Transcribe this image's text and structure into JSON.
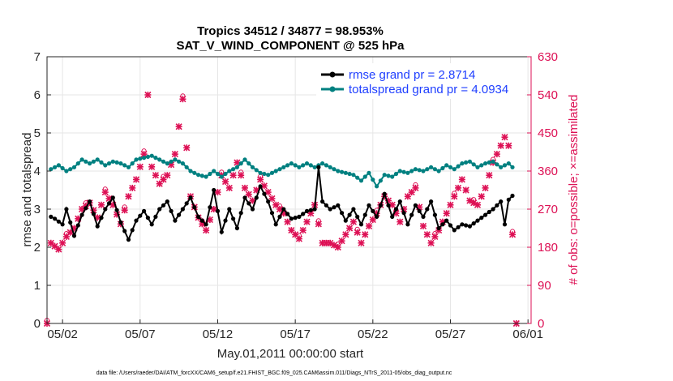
{
  "chart_data": {
    "type": "line",
    "title": "Tropics 34512 / 34877 = 98.953%",
    "subtitle": "SAT_V_WIND_COMPONENT @ 525 hPa",
    "xlabel": "May.01,2011 00:00:00 start",
    "ylabel_left": "rmse and totalspread",
    "ylabel_right": "# of obs: o=possible; ×=assimilated",
    "footer": "data file: /Users/raeder/DAI/ATM_forcXX/CAM6_setup/f.e21.FHIST_BGC.f09_025.CAM6assim.011/Diags_NTrS_2011-05/obs_diag_output.nc",
    "xlim": [
      0.0,
      31.2
    ],
    "ylim_left": [
      0,
      7
    ],
    "ylim_right": [
      0,
      630
    ],
    "x_ticks": [
      1,
      6,
      11,
      16,
      21,
      26,
      31
    ],
    "x_tick_labels": [
      "05/02",
      "05/07",
      "05/12",
      "05/17",
      "05/22",
      "05/27",
      "06/01"
    ],
    "y_ticks_left": [
      0,
      1,
      2,
      3,
      4,
      5,
      6,
      7
    ],
    "y_ticks_right": [
      0,
      90,
      180,
      270,
      360,
      450,
      540,
      630
    ],
    "colors": {
      "rmse": "#000000",
      "totalspread": "#008080",
      "obs": "#dd1155",
      "legend_text": "#1f3fff",
      "right_axis": "#dd1155"
    },
    "legend": [
      {
        "name": "rmse grand pr = 2.8714",
        "color": "#000000"
      },
      {
        "name": "totalspread grand pr = 4.0934",
        "color": "#008080"
      }
    ],
    "series": [
      {
        "name": "rmse",
        "color": "#000000",
        "axis": "left",
        "key_points": [
          [
            0.25,
            2.8
          ],
          [
            0.5,
            2.75
          ],
          [
            1.0,
            2.6
          ],
          [
            1.25,
            3.0
          ],
          [
            1.75,
            2.3
          ],
          [
            2.25,
            2.85
          ],
          [
            2.75,
            3.2
          ],
          [
            3.25,
            2.55
          ],
          [
            3.75,
            3.0
          ],
          [
            4.25,
            3.3
          ],
          [
            4.75,
            2.65
          ],
          [
            5.25,
            2.2
          ],
          [
            5.75,
            2.7
          ],
          [
            6.25,
            2.95
          ],
          [
            6.75,
            2.6
          ],
          [
            7.25,
            3.0
          ],
          [
            7.75,
            3.2
          ],
          [
            8.25,
            2.7
          ],
          [
            8.75,
            3.0
          ],
          [
            9.25,
            3.3
          ],
          [
            9.75,
            2.8
          ],
          [
            10.25,
            2.6
          ],
          [
            10.75,
            3.5
          ],
          [
            11.25,
            2.4
          ],
          [
            11.75,
            3.0
          ],
          [
            12.25,
            2.5
          ],
          [
            12.75,
            3.3
          ],
          [
            13.25,
            3.0
          ],
          [
            13.75,
            3.6
          ],
          [
            14.25,
            3.2
          ],
          [
            14.75,
            2.6
          ],
          [
            15.25,
            3.0
          ],
          [
            15.75,
            2.75
          ],
          [
            16.25,
            2.8
          ],
          [
            16.75,
            2.95
          ],
          [
            17.25,
            3.0
          ],
          [
            17.5,
            4.1
          ],
          [
            17.75,
            3.2
          ],
          [
            18.25,
            3.0
          ],
          [
            18.75,
            3.1
          ],
          [
            19.25,
            2.7
          ],
          [
            19.75,
            3.0
          ],
          [
            20.25,
            2.6
          ],
          [
            20.75,
            3.1
          ],
          [
            21.25,
            2.8
          ],
          [
            21.75,
            3.4
          ],
          [
            22.25,
            2.8
          ],
          [
            22.75,
            3.2
          ],
          [
            23.25,
            2.6
          ],
          [
            23.75,
            3.1
          ],
          [
            24.25,
            2.8
          ],
          [
            24.75,
            3.2
          ],
          [
            25.25,
            2.5
          ],
          [
            25.75,
            2.7
          ],
          [
            26.25,
            2.45
          ],
          [
            26.75,
            2.6
          ],
          [
            27.25,
            2.55
          ],
          [
            27.75,
            2.7
          ],
          [
            28.25,
            2.85
          ],
          [
            28.75,
            3.0
          ],
          [
            29.25,
            3.2
          ],
          [
            29.5,
            2.6
          ],
          [
            29.75,
            3.25
          ],
          [
            30.0,
            3.35
          ]
        ]
      },
      {
        "name": "totalspread",
        "color": "#008080",
        "axis": "left",
        "key_points": [
          [
            0.25,
            4.05
          ],
          [
            0.75,
            4.15
          ],
          [
            1.25,
            4.0
          ],
          [
            1.75,
            4.1
          ],
          [
            2.25,
            4.3
          ],
          [
            2.75,
            4.2
          ],
          [
            3.25,
            4.3
          ],
          [
            3.75,
            4.15
          ],
          [
            4.25,
            4.25
          ],
          [
            4.75,
            4.2
          ],
          [
            5.25,
            4.1
          ],
          [
            5.75,
            4.3
          ],
          [
            6.25,
            4.35
          ],
          [
            6.75,
            4.4
          ],
          [
            7.25,
            4.3
          ],
          [
            7.75,
            4.2
          ],
          [
            8.25,
            4.3
          ],
          [
            8.75,
            4.2
          ],
          [
            9.25,
            4.0
          ],
          [
            9.75,
            3.9
          ],
          [
            10.25,
            3.85
          ],
          [
            10.75,
            4.0
          ],
          [
            11.25,
            3.85
          ],
          [
            11.75,
            4.0
          ],
          [
            12.25,
            4.1
          ],
          [
            12.75,
            4.3
          ],
          [
            13.25,
            4.1
          ],
          [
            13.75,
            3.95
          ],
          [
            14.25,
            3.9
          ],
          [
            14.75,
            4.0
          ],
          [
            15.25,
            4.1
          ],
          [
            15.75,
            4.2
          ],
          [
            16.25,
            4.1
          ],
          [
            16.75,
            4.2
          ],
          [
            17.25,
            4.1
          ],
          [
            17.75,
            4.2
          ],
          [
            18.25,
            4.1
          ],
          [
            18.75,
            4.0
          ],
          [
            19.25,
            3.95
          ],
          [
            19.75,
            3.9
          ],
          [
            20.25,
            3.75
          ],
          [
            20.75,
            3.95
          ],
          [
            21.25,
            3.6
          ],
          [
            21.75,
            3.9
          ],
          [
            22.25,
            3.85
          ],
          [
            22.75,
            4.0
          ],
          [
            23.25,
            3.95
          ],
          [
            23.75,
            4.05
          ],
          [
            24.25,
            4.0
          ],
          [
            24.75,
            4.1
          ],
          [
            25.25,
            4.0
          ],
          [
            25.75,
            4.15
          ],
          [
            26.25,
            4.05
          ],
          [
            26.75,
            4.2
          ],
          [
            27.25,
            4.25
          ],
          [
            27.75,
            4.1
          ],
          [
            28.25,
            4.2
          ],
          [
            28.75,
            4.25
          ],
          [
            29.25,
            4.1
          ],
          [
            29.75,
            4.2
          ],
          [
            30.0,
            4.1
          ]
        ]
      },
      {
        "name": "obs possible/assimilated",
        "color": "#dd1155",
        "axis": "right",
        "key_points": [
          [
            0.0,
            0
          ],
          [
            0.25,
            190
          ],
          [
            0.75,
            175
          ],
          [
            1.25,
            205
          ],
          [
            1.75,
            225
          ],
          [
            2.25,
            270
          ],
          [
            2.75,
            285
          ],
          [
            3.25,
            250
          ],
          [
            3.75,
            310
          ],
          [
            4.25,
            280
          ],
          [
            4.75,
            235
          ],
          [
            5.25,
            300
          ],
          [
            5.75,
            340
          ],
          [
            6.25,
            400
          ],
          [
            6.5,
            540
          ],
          [
            6.75,
            370
          ],
          [
            7.25,
            330
          ],
          [
            7.75,
            350
          ],
          [
            8.25,
            400
          ],
          [
            8.75,
            530
          ],
          [
            9.25,
            300
          ],
          [
            9.75,
            250
          ],
          [
            10.25,
            220
          ],
          [
            10.75,
            270
          ],
          [
            11.25,
            350
          ],
          [
            11.75,
            320
          ],
          [
            12.25,
            380
          ],
          [
            12.75,
            320
          ],
          [
            13.25,
            290
          ],
          [
            13.75,
            340
          ],
          [
            14.25,
            310
          ],
          [
            14.75,
            280
          ],
          [
            15.25,
            260
          ],
          [
            15.75,
            220
          ],
          [
            16.25,
            200
          ],
          [
            16.75,
            240
          ],
          [
            17.25,
            280
          ],
          [
            17.75,
            190
          ],
          [
            18.25,
            190
          ],
          [
            18.75,
            180
          ],
          [
            19.25,
            210
          ],
          [
            19.75,
            240
          ],
          [
            20.25,
            190
          ],
          [
            20.75,
            230
          ],
          [
            21.25,
            260
          ],
          [
            21.75,
            300
          ],
          [
            22.25,
            280
          ],
          [
            22.75,
            240
          ],
          [
            23.25,
            300
          ],
          [
            23.75,
            320
          ],
          [
            24.25,
            230
          ],
          [
            24.75,
            190
          ],
          [
            25.25,
            220
          ],
          [
            25.75,
            260
          ],
          [
            26.25,
            300
          ],
          [
            26.75,
            340
          ],
          [
            27.25,
            290
          ],
          [
            27.75,
            280
          ],
          [
            28.25,
            320
          ],
          [
            28.75,
            380
          ],
          [
            29.25,
            420
          ],
          [
            29.5,
            440
          ],
          [
            29.75,
            420
          ],
          [
            30.25,
            0
          ]
        ]
      }
    ]
  }
}
